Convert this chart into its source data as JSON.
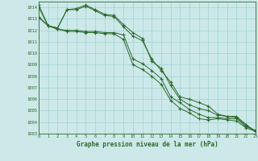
{
  "xlabel": "Graphe pression niveau de la mer (hPa)",
  "ylim": [
    1003,
    1014.5
  ],
  "xlim": [
    0,
    23
  ],
  "yticks": [
    1003,
    1004,
    1005,
    1006,
    1007,
    1008,
    1009,
    1010,
    1011,
    1012,
    1013,
    1014
  ],
  "xticks": [
    0,
    1,
    2,
    3,
    4,
    5,
    6,
    7,
    8,
    9,
    10,
    11,
    12,
    13,
    14,
    15,
    16,
    17,
    18,
    19,
    20,
    21,
    22,
    23
  ],
  "background_color": "#cce8e8",
  "grid_color": "#99cccc",
  "line_color": "#2d6a2d",
  "series": [
    [
      1014.2,
      1012.4,
      1012.2,
      1013.8,
      1013.8,
      1014.1,
      1013.7,
      1013.3,
      1013.2,
      1012.3,
      1011.5,
      1011.1,
      1009.5,
      1008.5,
      1007.5,
      1006.2,
      1006.0,
      1005.7,
      1005.4,
      1004.7,
      1004.5,
      1004.5,
      1003.8,
      1003.2
    ],
    [
      1014.0,
      1012.4,
      1012.2,
      1013.8,
      1013.9,
      1014.2,
      1013.8,
      1013.4,
      1013.3,
      1012.5,
      1011.8,
      1011.3,
      1009.3,
      1008.7,
      1007.2,
      1006.0,
      1005.5,
      1005.2,
      1005.0,
      1004.6,
      1004.5,
      1004.4,
      1003.7,
      1003.2
    ],
    [
      1013.2,
      1012.4,
      1012.1,
      1012.0,
      1012.0,
      1011.9,
      1011.9,
      1011.8,
      1011.8,
      1011.6,
      1009.5,
      1009.1,
      1008.5,
      1007.8,
      1006.2,
      1005.7,
      1005.1,
      1004.7,
      1004.4,
      1004.4,
      1004.3,
      1004.3,
      1003.6,
      1003.3
    ],
    [
      1013.1,
      1012.4,
      1012.1,
      1011.9,
      1011.9,
      1011.8,
      1011.8,
      1011.7,
      1011.7,
      1011.2,
      1009.0,
      1008.6,
      1008.0,
      1007.3,
      1005.9,
      1005.2,
      1004.8,
      1004.3,
      1004.2,
      1004.3,
      1004.2,
      1004.1,
      1003.5,
      1003.2
    ]
  ]
}
